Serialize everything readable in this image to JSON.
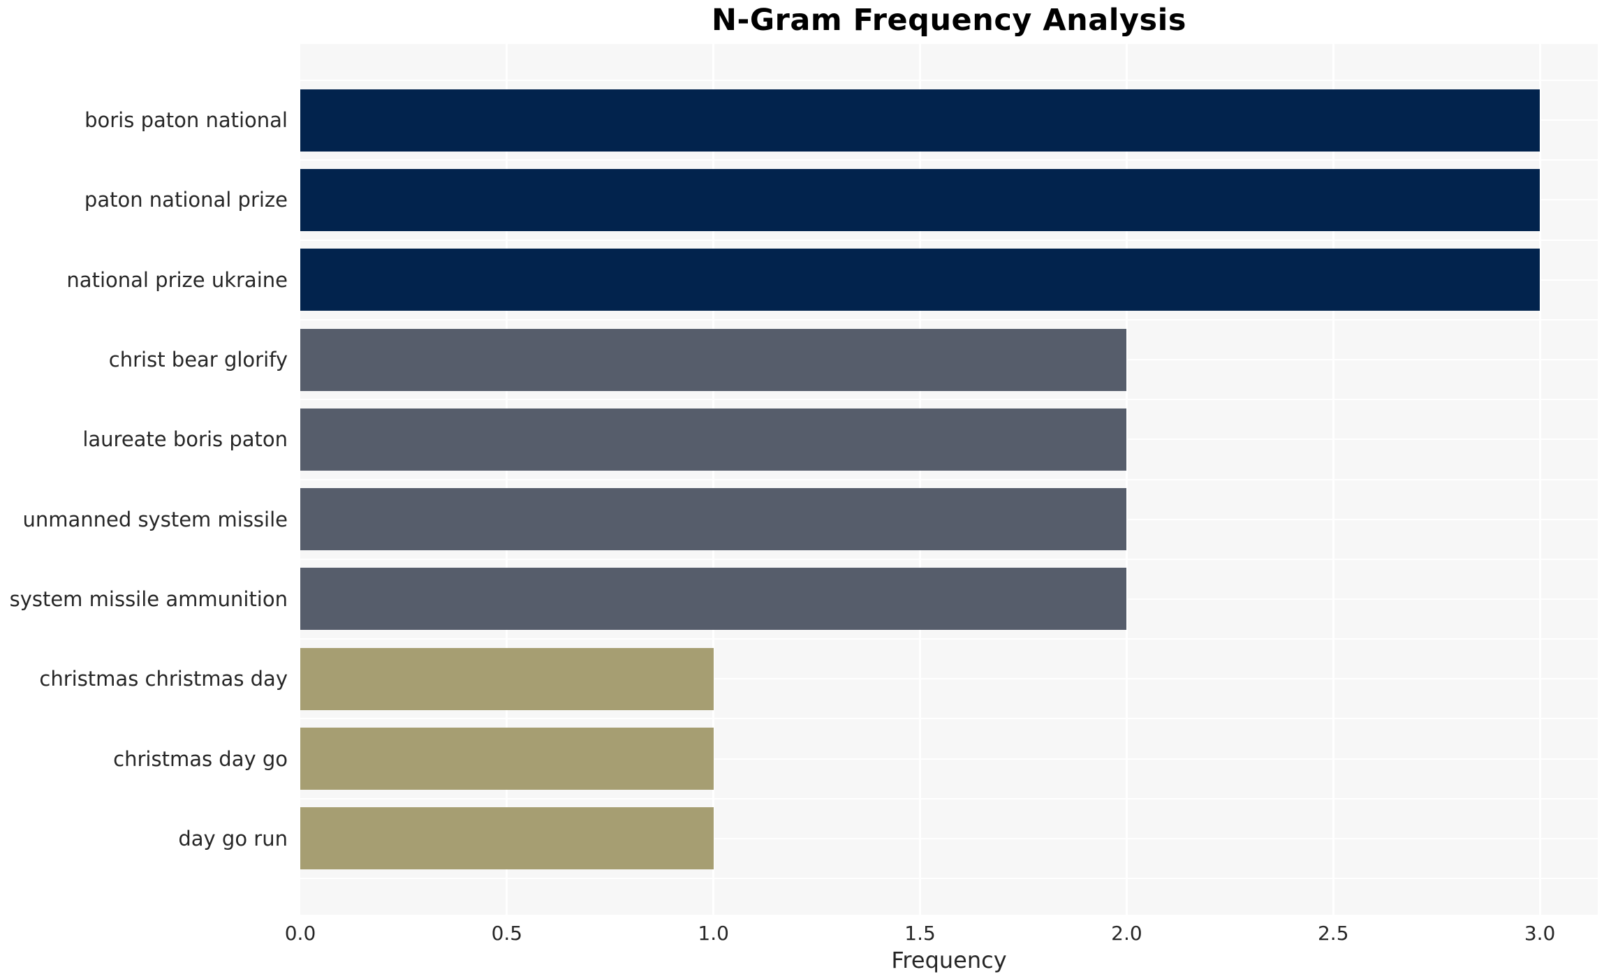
{
  "chart_data": {
    "type": "bar",
    "orientation": "horizontal",
    "title": "N-Gram Frequency Analysis",
    "xlabel": "Frequency",
    "ylabel": "",
    "categories": [
      "boris paton national",
      "paton national prize",
      "national prize ukraine",
      "christ bear glorify",
      "laureate boris paton",
      "unmanned system missile",
      "system missile ammunition",
      "christmas christmas day",
      "christmas day go",
      "day go run"
    ],
    "values": [
      3,
      3,
      3,
      2,
      2,
      2,
      2,
      1,
      1,
      1
    ],
    "bar_colors": [
      "#02234d",
      "#02234d",
      "#02234d",
      "#565d6b",
      "#565d6b",
      "#565d6b",
      "#565d6b",
      "#a69e72",
      "#a69e72",
      "#a69e72"
    ],
    "xticks": [
      "0.0",
      "0.5",
      "1.0",
      "1.5",
      "2.0",
      "2.5",
      "3.0"
    ],
    "xtick_values": [
      0,
      0.5,
      1,
      1.5,
      2,
      2.5,
      3
    ],
    "xlim": [
      0,
      3.14
    ],
    "grid": true,
    "legend": "none",
    "colors": {
      "freq_3_bar": "#02234d",
      "freq_2_bar": "#565d6b",
      "freq_1_bar": "#a69e72",
      "plot_background": "#f7f7f7",
      "gridline": "#ffffff",
      "figure_background": "#ffffff",
      "text": "#262626",
      "title_text": "#000000"
    }
  }
}
